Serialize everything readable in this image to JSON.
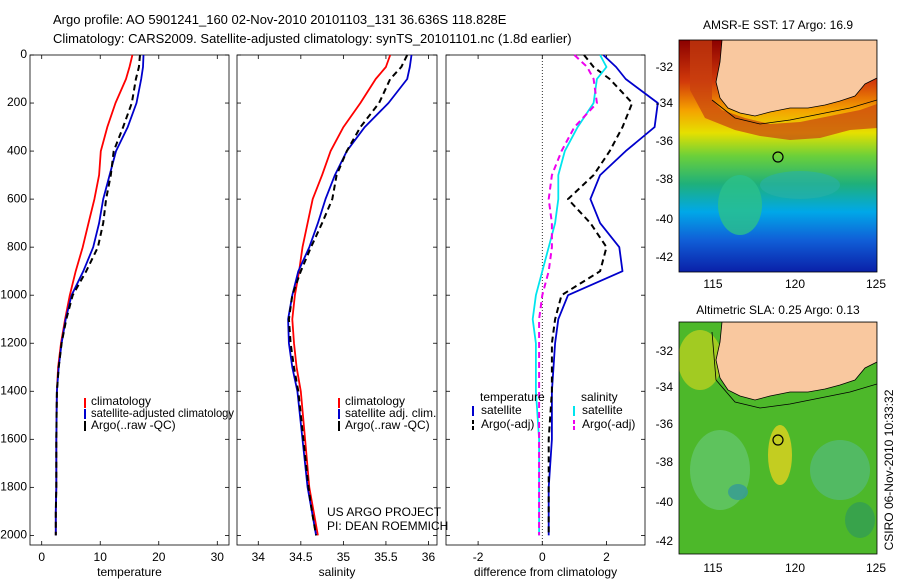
{
  "header": {
    "title_line1": "Argo profile: AO 5901241_160 02-Nov-2010 20101103_131 36.636S 118.828E",
    "title_line2": "Climatology: CARS2009. Satellite-adjusted climatology: synTS_20101101.nc (1.8d earlier)"
  },
  "colors": {
    "climatology": "#ff0000",
    "satellite": "#0000cc",
    "argo": "#000000",
    "satellite_salinity_diff": "#00e5ee",
    "argo_adj_salinity_diff": "#ee00ee",
    "land": "#f9c89f"
  },
  "credits": {
    "line1": "US ARGO PROJECT",
    "line2": "PI: DEAN ROEMMICH"
  },
  "timestamp": "CSIRO 06-Nov-2010 10:33:32",
  "chart_data": [
    {
      "type": "line",
      "panel": "temperature",
      "xlabel": "temperature",
      "ylabel": "",
      "xlim": [
        -2,
        32
      ],
      "ylim": [
        2040,
        0
      ],
      "xticks": [
        0,
        10,
        20,
        30
      ],
      "yticks": [
        0,
        200,
        400,
        600,
        800,
        1000,
        1200,
        1400,
        1600,
        1800,
        2000
      ],
      "legend": [
        "climatology",
        "satellite-adjusted climatology",
        "Argo(..raw -QC)"
      ],
      "legend_placement": "lower-right",
      "series": [
        {
          "name": "climatology",
          "x": [
            15.5,
            15.0,
            14.4,
            12.6,
            11.2,
            10.1,
            9.8,
            9.0,
            8.0,
            7.0,
            5.8,
            4.8,
            4.0,
            3.3,
            2.8,
            2.6,
            2.5,
            2.5,
            2.4,
            2.4
          ],
          "y": [
            0,
            50,
            100,
            200,
            300,
            400,
            500,
            600,
            700,
            800,
            900,
            1000,
            1100,
            1200,
            1300,
            1400,
            1600,
            1800,
            1900,
            2000
          ]
        },
        {
          "name": "satellite-adjusted climatology",
          "x": [
            17.4,
            17.3,
            17.0,
            16.2,
            14.7,
            12.7,
            11.6,
            10.5,
            9.8,
            8.8,
            7.1,
            5.1,
            4.1,
            3.4,
            2.9,
            2.6,
            2.5,
            2.5,
            2.4,
            2.4
          ],
          "y": [
            0,
            50,
            100,
            200,
            300,
            400,
            500,
            600,
            700,
            800,
            900,
            1000,
            1100,
            1200,
            1300,
            1400,
            1600,
            1800,
            1900,
            2000
          ]
        },
        {
          "name": "Argo(..raw -QC)",
          "x": [
            16.8,
            16.6,
            16.1,
            15.4,
            13.9,
            12.3,
            11.8,
            11.0,
            10.5,
            9.6,
            7.6,
            5.3,
            4.2,
            3.4,
            2.9,
            2.6,
            2.5,
            2.5,
            2.4,
            2.4
          ],
          "y": [
            0,
            50,
            100,
            200,
            300,
            400,
            500,
            600,
            700,
            800,
            900,
            1000,
            1100,
            1200,
            1300,
            1400,
            1600,
            1800,
            1900,
            2000
          ]
        }
      ]
    },
    {
      "type": "line",
      "panel": "salinity",
      "xlabel": "salinity",
      "ylabel": "",
      "xlim": [
        33.75,
        36.1
      ],
      "ylim": [
        2040,
        0
      ],
      "xticks": [
        34,
        34.5,
        35,
        35.5,
        36
      ],
      "yticks": [
        0,
        200,
        400,
        600,
        800,
        1000,
        1200,
        1400,
        1600,
        1800,
        2000
      ],
      "legend": [
        "climatology",
        "satellite adj. clim.",
        "Argo(..raw -QC)"
      ],
      "legend_placement": "lower-right",
      "series": [
        {
          "name": "climatology",
          "x": [
            35.55,
            35.5,
            35.38,
            35.2,
            35.0,
            34.85,
            34.75,
            34.64,
            34.58,
            34.52,
            34.48,
            34.43,
            34.4,
            34.42,
            34.45,
            34.5,
            34.55,
            34.6,
            34.65,
            34.7
          ],
          "y": [
            0,
            50,
            100,
            200,
            300,
            400,
            500,
            600,
            700,
            800,
            900,
            1000,
            1100,
            1200,
            1300,
            1400,
            1600,
            1800,
            1900,
            2000
          ]
        },
        {
          "name": "satellite adj. clim.",
          "x": [
            35.8,
            35.78,
            35.75,
            35.53,
            35.25,
            35.04,
            34.9,
            34.79,
            34.7,
            34.6,
            34.47,
            34.4,
            34.35,
            34.36,
            34.4,
            34.46,
            34.52,
            34.58,
            34.63,
            34.68
          ],
          "y": [
            0,
            50,
            100,
            200,
            300,
            400,
            500,
            600,
            700,
            800,
            900,
            1000,
            1100,
            1200,
            1300,
            1400,
            1600,
            1800,
            1900,
            2000
          ]
        },
        {
          "name": "Argo(..raw -QC)",
          "x": [
            35.75,
            35.68,
            35.55,
            35.42,
            35.2,
            35.04,
            34.92,
            34.87,
            34.75,
            34.62,
            34.5,
            34.4,
            34.36,
            34.38,
            34.42,
            34.47,
            34.53,
            34.59,
            34.63,
            34.68
          ],
          "y": [
            0,
            50,
            100,
            200,
            300,
            400,
            500,
            600,
            700,
            800,
            900,
            1000,
            1100,
            1200,
            1300,
            1400,
            1600,
            1800,
            1900,
            2000
          ]
        }
      ]
    },
    {
      "type": "line",
      "panel": "difference",
      "xlabel": "difference from climatology",
      "ylabel": "",
      "xlim": [
        -3,
        3.2
      ],
      "ylim": [
        2040,
        0
      ],
      "xticks": [
        -2,
        0,
        2
      ],
      "yticks": [
        0,
        200,
        400,
        600,
        800,
        1000,
        1200,
        1400,
        1600,
        1800,
        2000
      ],
      "reference_line_x": 0,
      "legend_groups": [
        {
          "title": "temperature",
          "entries": [
            "satellite",
            "Argo(-adj)"
          ]
        },
        {
          "title": "salinity",
          "entries": [
            "satellite",
            "Argo(-adj)"
          ]
        }
      ],
      "legend_placement": "lower-center",
      "series": [
        {
          "name": "temperature satellite",
          "x": [
            1.9,
            2.3,
            2.6,
            3.6,
            3.5,
            2.6,
            1.8,
            1.5,
            1.8,
            2.4,
            2.5,
            0.8,
            0.5,
            0.4,
            0.3,
            0.3,
            0.2,
            0.2,
            0.2
          ],
          "y": [
            0,
            50,
            100,
            200,
            300,
            400,
            500,
            600,
            700,
            800,
            900,
            1000,
            1100,
            1200,
            1400,
            1600,
            1800,
            1900,
            2000
          ]
        },
        {
          "name": "temperature Argo(-adj)",
          "x": [
            1.3,
            1.6,
            2.1,
            2.8,
            2.5,
            2.1,
            1.6,
            0.8,
            1.5,
            2.0,
            1.8,
            0.6,
            0.4,
            0.3,
            0.3,
            0.2,
            0.2,
            0.2,
            0.2
          ],
          "y": [
            0,
            50,
            100,
            200,
            300,
            400,
            500,
            600,
            700,
            800,
            900,
            1000,
            1100,
            1200,
            1400,
            1600,
            1800,
            1900,
            2000
          ]
        },
        {
          "name": "salinity satellite",
          "x": [
            1.8,
            2.0,
            1.7,
            1.6,
            1.1,
            0.7,
            0.5,
            0.5,
            0.4,
            0.2,
            0.0,
            -0.2,
            -0.3,
            -0.2,
            -0.2,
            -0.1,
            -0.1,
            -0.1,
            -0.1
          ],
          "y": [
            0,
            50,
            100,
            200,
            300,
            400,
            500,
            600,
            700,
            800,
            900,
            1000,
            1100,
            1200,
            1400,
            1600,
            1800,
            1900,
            2000
          ]
        },
        {
          "name": "salinity Argo(-adj)",
          "x": [
            1.0,
            1.4,
            1.6,
            1.7,
            1.0,
            0.6,
            0.3,
            0.2,
            0.3,
            0.3,
            0.2,
            0.0,
            -0.1,
            -0.1,
            -0.1,
            -0.1,
            -0.1,
            -0.1,
            -0.1
          ],
          "y": [
            0,
            50,
            100,
            200,
            300,
            400,
            500,
            600,
            700,
            800,
            900,
            1000,
            1100,
            1200,
            1400,
            1600,
            1800,
            1900,
            2000
          ]
        }
      ]
    },
    {
      "type": "heatmap",
      "panel": "sst_map",
      "title": "AMSR-E SST: 17 Argo: 16.9",
      "xlim": [
        113,
        125
      ],
      "ylim": [
        -43,
        -31
      ],
      "xticks": [
        115,
        120,
        125
      ],
      "yticks": [
        -32,
        -34,
        -36,
        -38,
        -40,
        -42
      ],
      "marker": {
        "lon": 118.828,
        "lat": -36.636
      }
    },
    {
      "type": "heatmap",
      "panel": "sla_map",
      "title": "Altimetric SLA: 0.25 Argo: 0.13",
      "xlim": [
        113,
        125
      ],
      "ylim": [
        -43,
        -31
      ],
      "xticks": [
        115,
        120,
        125
      ],
      "yticks": [
        -32,
        -34,
        -36,
        -38,
        -40,
        -42
      ],
      "marker": {
        "lon": 118.828,
        "lat": -36.636
      }
    }
  ]
}
